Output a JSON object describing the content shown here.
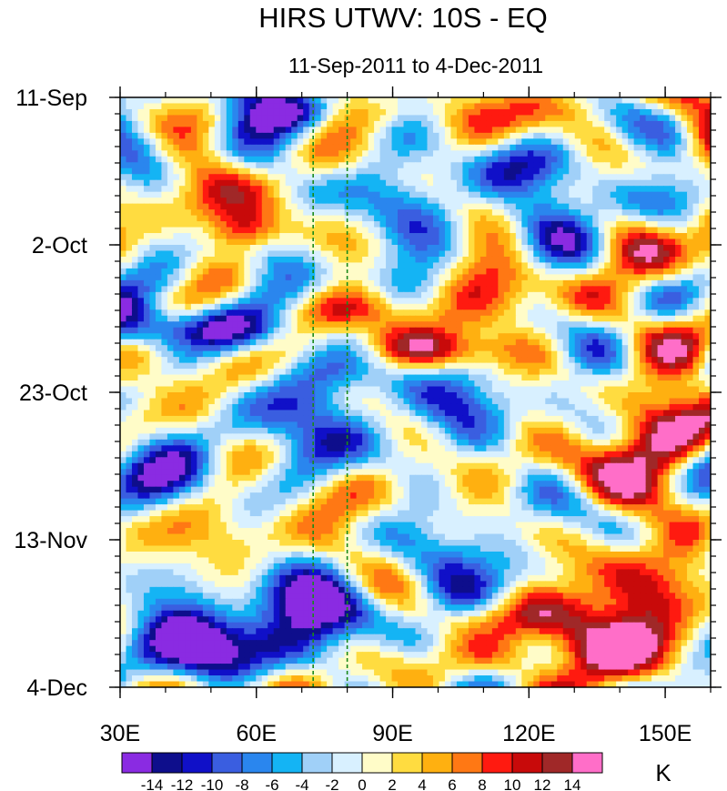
{
  "chart_data": {
    "type": "heatmap",
    "title": "HIRS UTWV: 10S - EQ",
    "subtitle": "11-Sep-2011 to 4-Dec-2011",
    "x_axis": {
      "label": "",
      "range": [
        30,
        160
      ],
      "ticks": [
        {
          "value": 30,
          "label": "30E"
        },
        {
          "value": 60,
          "label": "60E"
        },
        {
          "value": 90,
          "label": "90E"
        },
        {
          "value": 120,
          "label": "120E"
        },
        {
          "value": 150,
          "label": "150E"
        }
      ],
      "minor_step": 10
    },
    "y_axis": {
      "label": "",
      "range_days": [
        0,
        84
      ],
      "ticks": [
        {
          "day": 0,
          "label": "11-Sep"
        },
        {
          "day": 21,
          "label": "2-Oct"
        },
        {
          "day": 42,
          "label": "23-Oct"
        },
        {
          "day": 63,
          "label": "13-Nov"
        },
        {
          "day": 84,
          "label": "4-Dec"
        }
      ],
      "minor_step_days": 7
    },
    "reference_lines": [
      {
        "lon": 72.5,
        "style": "dashed",
        "color": "#1a8a1a"
      },
      {
        "lon": 80,
        "style": "dashed",
        "color": "#1a8a1a"
      }
    ],
    "colorbar": {
      "unit": "K",
      "levels": [
        -14,
        -12,
        -10,
        -8,
        -6,
        -4,
        -2,
        0,
        2,
        4,
        6,
        8,
        10,
        12,
        14
      ],
      "colors": [
        "#8a2be2",
        "#0e0e8c",
        "#1010c8",
        "#3a5ee0",
        "#2a86ee",
        "#14b4f4",
        "#a0d0f8",
        "#d8f0ff",
        "#fffcc8",
        "#ffdc40",
        "#ffb010",
        "#ff7814",
        "#ff1a10",
        "#c80a0a",
        "#a02828",
        "#ff6ec8"
      ]
    },
    "features": [
      {
        "desc": "negative anomaly",
        "lon": 55,
        "day": 78,
        "value": -12
      },
      {
        "desc": "negative anomaly",
        "lon": 40,
        "day": 33,
        "value": -12
      },
      {
        "desc": "positive anomaly",
        "lon": 100,
        "day": 36,
        "value": 10
      },
      {
        "desc": "positive anomaly",
        "lon": 58,
        "day": 19,
        "value": 10
      },
      {
        "desc": "positive anomaly",
        "lon": 145,
        "day": 82,
        "value": 10
      }
    ]
  }
}
